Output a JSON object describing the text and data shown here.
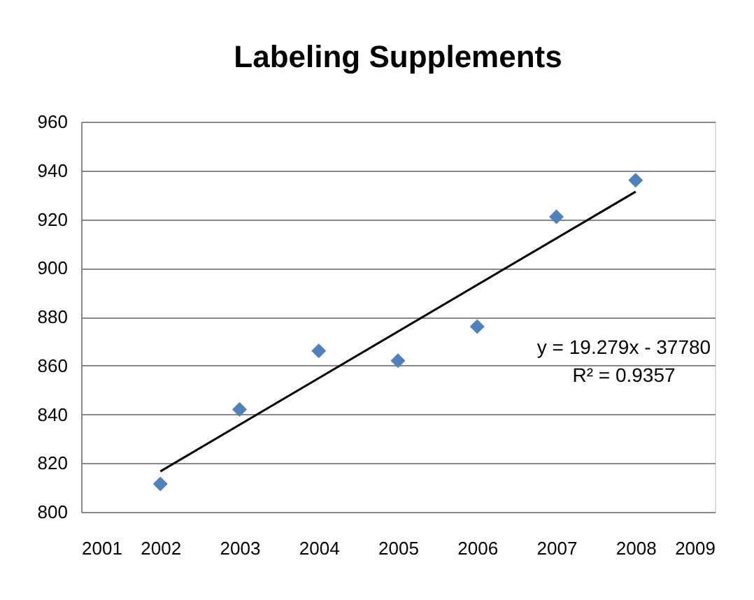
{
  "chart_data": {
    "type": "scatter",
    "title": "Labeling Supplements",
    "x": [
      2002,
      2003,
      2004,
      2005,
      2006,
      2007,
      2008
    ],
    "series": [
      {
        "type": "scatter",
        "color": "#4f81bd",
        "values": [
          811.5,
          842,
          866,
          862,
          876,
          921,
          936
        ],
        "marker": "diamond"
      },
      {
        "type": "line",
        "color": "#000000",
        "x": [
          2002,
          2008
        ],
        "values": [
          816.6,
          931.3
        ],
        "marker": "none",
        "line_style": "solid"
      }
    ],
    "xlim": [
      2001,
      2009
    ],
    "xticks": [
      2001,
      2002,
      2003,
      2004,
      2005,
      2006,
      2007,
      2008,
      2009
    ],
    "ylim": [
      800,
      960
    ],
    "yticks": [
      800,
      820,
      840,
      860,
      880,
      900,
      920,
      940,
      960
    ],
    "grid": "y",
    "annotations": [
      "y = 19.279x - 37780",
      "R² = 0.9357"
    ]
  }
}
